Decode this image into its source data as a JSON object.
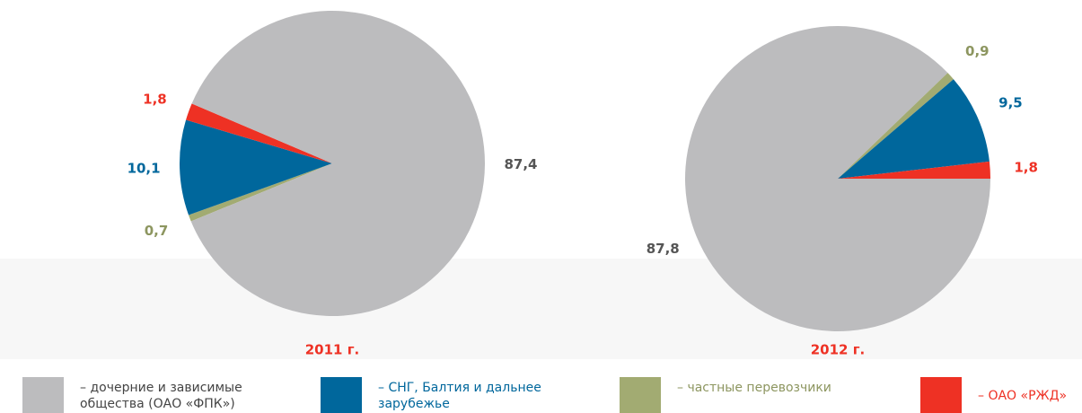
{
  "chart_data": [
    {
      "type": "pie",
      "title": "2011 г.",
      "values": [
        87.4,
        10.1,
        0.7,
        1.8
      ],
      "value_labels": [
        "87,4",
        "10,1",
        "0,7",
        "1,8"
      ],
      "colors": [
        "#bcbcbe",
        "#00679c",
        "#a2ab72",
        "#ee3124"
      ]
    },
    {
      "type": "pie",
      "title": "2012 г.",
      "values": [
        87.8,
        9.5,
        0.9,
        1.8
      ],
      "value_labels": [
        "87,8",
        "9,5",
        "0,9",
        "1,8"
      ],
      "colors": [
        "#bcbcbe",
        "#00679c",
        "#a2ab72",
        "#ee3124"
      ]
    }
  ],
  "legend": {
    "labels": [
      "– дочерние и зависимые общества (ОАО «ФПК»)",
      "– СНГ, Балтия и дальнее зарубежье",
      "– частные перевозчики",
      "– ОАО «РЖД»"
    ],
    "colors": [
      "#bcbcbe",
      "#00679c",
      "#a2ab72",
      "#ee3124"
    ]
  }
}
